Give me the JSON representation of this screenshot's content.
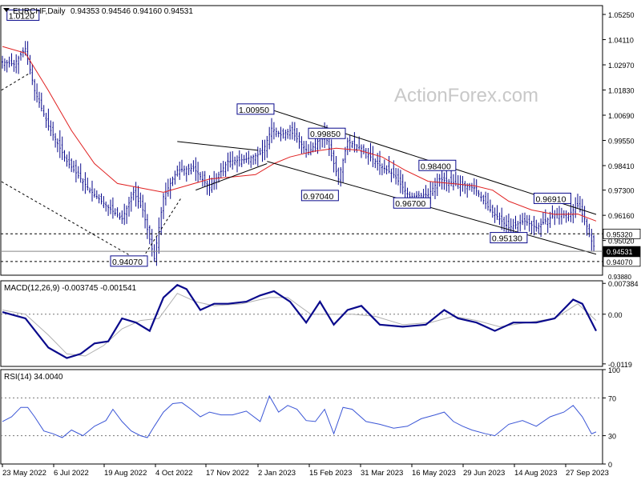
{
  "header": {
    "symbol": "EURCHF,Daily",
    "ohlc": "0.94353 0.94546 0.94160 0.94531",
    "watermark": "ActionForex.com"
  },
  "colors": {
    "candle": "#0a0a8c",
    "ma": "#e02020",
    "macd": "#0a0a8c",
    "signal": "#b0b0b0",
    "rsi": "#3b56d6",
    "channel": "#000000",
    "hline": "#000000",
    "label_border": "#0a0a8c"
  },
  "chart_data": [
    {
      "type": "candlestick",
      "name": "price",
      "y_range": [
        0.9345,
        1.0565
      ],
      "y_ticks": [
        1.0525,
        1.0411,
        1.0297,
        1.0183,
        1.0069,
        0.9955,
        0.9841,
        0.973,
        0.9616,
        0.9502
      ],
      "current_price": "0.94531",
      "x_labels": [
        "23 May 2022",
        "6 Jul 2022",
        "19 Aug 2022",
        "4 Oct 2022",
        "17 Nov 2022",
        "2 Jan 2023",
        "15 Feb 2023",
        "31 Mar 2023",
        "16 May 2023",
        "29 Jun 2023",
        "14 Aug 2023",
        "27 Sep 2023"
      ],
      "close_path": [
        [
          0,
          1.031
        ],
        [
          5,
          1.03
        ],
        [
          10,
          1.037
        ],
        [
          14,
          1.018
        ],
        [
          20,
          1.002
        ],
        [
          28,
          0.986
        ],
        [
          38,
          0.973
        ],
        [
          45,
          0.966
        ],
        [
          52,
          0.96
        ],
        [
          57,
          0.972
        ],
        [
          61,
          0.964
        ],
        [
          66,
          0.942
        ],
        [
          70,
          0.97
        ],
        [
          76,
          0.982
        ],
        [
          83,
          0.983
        ],
        [
          90,
          0.974
        ],
        [
          98,
          0.986
        ],
        [
          106,
          0.987
        ],
        [
          113,
          0.99
        ],
        [
          117,
          1.001
        ],
        [
          121,
          0.998
        ],
        [
          125,
          1.0
        ],
        [
          133,
          0.99
        ],
        [
          140,
          0.999
        ],
        [
          146,
          0.978
        ],
        [
          150,
          0.995
        ],
        [
          156,
          0.992
        ],
        [
          163,
          0.985
        ],
        [
          170,
          0.98
        ],
        [
          177,
          0.97
        ],
        [
          185,
          0.971
        ],
        [
          190,
          0.978
        ],
        [
          197,
          0.976
        ],
        [
          205,
          0.974
        ],
        [
          212,
          0.964
        ],
        [
          220,
          0.956
        ],
        [
          227,
          0.959
        ],
        [
          232,
          0.956
        ],
        [
          240,
          0.962
        ],
        [
          246,
          0.962
        ],
        [
          250,
          0.966
        ],
        [
          253,
          0.96
        ],
        [
          256,
          0.95
        ],
        [
          258,
          0.9453
        ]
      ],
      "ma_path": [
        [
          0,
          1.038
        ],
        [
          10,
          1.035
        ],
        [
          20,
          1.018
        ],
        [
          30,
          1.0
        ],
        [
          40,
          0.985
        ],
        [
          50,
          0.976
        ],
        [
          60,
          0.974
        ],
        [
          70,
          0.972
        ],
        [
          80,
          0.975
        ],
        [
          90,
          0.978
        ],
        [
          100,
          0.979
        ],
        [
          110,
          0.98
        ],
        [
          118,
          0.985
        ],
        [
          125,
          0.988
        ],
        [
          135,
          0.9905
        ],
        [
          145,
          0.992
        ],
        [
          155,
          0.991
        ],
        [
          165,
          0.988
        ],
        [
          175,
          0.982
        ],
        [
          185,
          0.977
        ],
        [
          195,
          0.976
        ],
        [
          205,
          0.975
        ],
        [
          213,
          0.973
        ],
        [
          220,
          0.968
        ],
        [
          230,
          0.964
        ],
        [
          240,
          0.962
        ],
        [
          250,
          0.9622
        ],
        [
          258,
          0.959
        ]
      ],
      "channel_lines": [
        [
          [
            115,
            1.01
          ],
          [
            258,
            0.962
          ]
        ],
        [
          [
            115,
            0.986
          ],
          [
            258,
            0.944
          ]
        ]
      ],
      "triangle_lines": [
        [
          [
            76,
            0.995
          ],
          [
            111,
            0.991
          ]
        ],
        [
          [
            84,
            0.973
          ],
          [
            115,
            0.985
          ]
        ]
      ],
      "support_lines": [
        [
          [
            -4,
            1.016
          ],
          [
            12,
            1.026
          ]
        ],
        [
          [
            -4,
            0.979
          ],
          [
            60,
            0.9407
          ]
        ],
        [
          [
            60,
            0.9407
          ],
          [
            78,
            0.97
          ]
        ]
      ],
      "hlines": [
        {
          "value": 0.9532,
          "style": "dashed"
        },
        {
          "value": 0.94531,
          "style": "solid"
        },
        {
          "value": 0.9407,
          "style": "dashed"
        }
      ],
      "annotations": [
        {
          "text": "1.0120",
          "x": 2,
          "y": 1.052
        },
        {
          "text": "0.94070",
          "x": 47,
          "y": 0.9407
        },
        {
          "text": "1.00950",
          "x": 102,
          "y": 1.0095
        },
        {
          "text": "0.99850",
          "x": 133,
          "y": 0.9985
        },
        {
          "text": "0.97040",
          "x": 130,
          "y": 0.9704
        },
        {
          "text": "0.96700",
          "x": 170,
          "y": 0.967
        },
        {
          "text": "0.98400",
          "x": 181,
          "y": 0.984
        },
        {
          "text": "0.95130",
          "x": 212,
          "y": 0.9513
        },
        {
          "text": "0.96910",
          "x": 231,
          "y": 0.9691
        }
      ],
      "price_labels": [
        "0.95320",
        "0.94531",
        "0.94070"
      ],
      "cutoff_label": "0.93880"
    },
    {
      "type": "line",
      "name": "MACD(12,26,9) -0.003745 -0.001541",
      "title": "MACD(12,26,9) -0.003745 -0.001541",
      "y_range": [
        -0.0125,
        0.008
      ],
      "y_ticks": [
        "0.007384",
        "0.00",
        "-0.0119"
      ],
      "y_tick_values": [
        0.007384,
        0.0,
        -0.0119
      ],
      "zero_line": 0.0,
      "series": [
        {
          "role": "macd",
          "points": [
            [
              0,
              0.0005
            ],
            [
              10,
              -0.001
            ],
            [
              20,
              -0.008
            ],
            [
              28,
              -0.0105
            ],
            [
              34,
              -0.0095
            ],
            [
              40,
              -0.007
            ],
            [
              46,
              -0.0065
            ],
            [
              52,
              -0.001
            ],
            [
              58,
              -0.002
            ],
            [
              64,
              -0.004
            ],
            [
              70,
              0.004
            ],
            [
              76,
              0.007
            ],
            [
              80,
              0.006
            ],
            [
              86,
              0.001
            ],
            [
              92,
              0.0025
            ],
            [
              98,
              0.0025
            ],
            [
              106,
              0.003
            ],
            [
              112,
              0.0045
            ],
            [
              118,
              0.0055
            ],
            [
              125,
              0.003
            ],
            [
              132,
              -0.002
            ],
            [
              138,
              0.003
            ],
            [
              144,
              -0.0025
            ],
            [
              150,
              0.001
            ],
            [
              156,
              0.002
            ],
            [
              164,
              -0.0025
            ],
            [
              174,
              -0.003
            ],
            [
              184,
              -0.0025
            ],
            [
              192,
              0.001
            ],
            [
              198,
              -0.001
            ],
            [
              206,
              -0.002
            ],
            [
              214,
              -0.004
            ],
            [
              222,
              -0.002
            ],
            [
              232,
              -0.002
            ],
            [
              240,
              -0.001
            ],
            [
              248,
              0.0035
            ],
            [
              252,
              0.0025
            ],
            [
              258,
              -0.004
            ]
          ]
        },
        {
          "role": "signal",
          "points": [
            [
              0,
              0.001
            ],
            [
              10,
              0.0
            ],
            [
              20,
              -0.005
            ],
            [
              28,
              -0.0095
            ],
            [
              36,
              -0.01
            ],
            [
              44,
              -0.0075
            ],
            [
              52,
              -0.0035
            ],
            [
              60,
              -0.0015
            ],
            [
              68,
              -0.001
            ],
            [
              76,
              0.005
            ],
            [
              84,
              0.003
            ],
            [
              92,
              0.002
            ],
            [
              104,
              0.0025
            ],
            [
              116,
              0.004
            ],
            [
              124,
              0.004
            ],
            [
              134,
              0.0
            ],
            [
              142,
              0.0
            ],
            [
              152,
              0.0
            ],
            [
              162,
              -0.0005
            ],
            [
              174,
              -0.0025
            ],
            [
              186,
              -0.002
            ],
            [
              196,
              -0.0005
            ],
            [
              206,
              -0.0015
            ],
            [
              216,
              -0.003
            ],
            [
              228,
              -0.002
            ],
            [
              240,
              -0.001
            ],
            [
              250,
              0.0025
            ],
            [
              258,
              -0.0015
            ]
          ]
        }
      ]
    },
    {
      "type": "line",
      "name": "RSI(14) 34.0040",
      "title": "RSI(14) 34.0040",
      "y_range": [
        0,
        100
      ],
      "y_ticks": [
        "100",
        "70",
        "30",
        "0"
      ],
      "y_tick_values": [
        100,
        70,
        30,
        0
      ],
      "levels": [
        70,
        30
      ],
      "series": [
        {
          "role": "rsi",
          "points": [
            [
              0,
              45
            ],
            [
              4,
              50
            ],
            [
              8,
              60
            ],
            [
              11,
              60
            ],
            [
              14,
              50
            ],
            [
              18,
              35
            ],
            [
              22,
              32
            ],
            [
              26,
              28
            ],
            [
              30,
              36
            ],
            [
              35,
              30
            ],
            [
              40,
              40
            ],
            [
              45,
              46
            ],
            [
              48,
              58
            ],
            [
              52,
              45
            ],
            [
              56,
              35
            ],
            [
              60,
              30
            ],
            [
              63,
              28
            ],
            [
              66,
              40
            ],
            [
              70,
              55
            ],
            [
              74,
              64
            ],
            [
              78,
              65
            ],
            [
              82,
              58
            ],
            [
              86,
              50
            ],
            [
              90,
              55
            ],
            [
              95,
              52
            ],
            [
              100,
              52
            ],
            [
              106,
              56
            ],
            [
              112,
              45
            ],
            [
              116,
              72
            ],
            [
              120,
              55
            ],
            [
              124,
              62
            ],
            [
              128,
              58
            ],
            [
              132,
              46
            ],
            [
              136,
              45
            ],
            [
              140,
              58
            ],
            [
              144,
              32
            ],
            [
              148,
              60
            ],
            [
              152,
              58
            ],
            [
              158,
              45
            ],
            [
              164,
              42
            ],
            [
              170,
              38
            ],
            [
              176,
              40
            ],
            [
              182,
              48
            ],
            [
              188,
              52
            ],
            [
              192,
              55
            ],
            [
              196,
              45
            ],
            [
              200,
              40
            ],
            [
              204,
              36
            ],
            [
              210,
              32
            ],
            [
              214,
              30
            ],
            [
              220,
              42
            ],
            [
              226,
              46
            ],
            [
              232,
              40
            ],
            [
              238,
              50
            ],
            [
              244,
              55
            ],
            [
              248,
              62
            ],
            [
              252,
              50
            ],
            [
              256,
              32
            ],
            [
              258,
              34
            ]
          ]
        }
      ]
    }
  ]
}
